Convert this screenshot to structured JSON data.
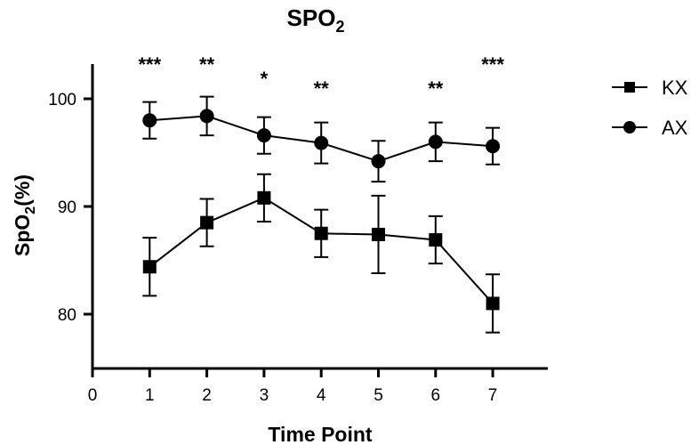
{
  "chart_data": {
    "type": "line",
    "title_main": "SPO",
    "title_sub": "2",
    "xlabel": "Time Point",
    "ylabel_main": "SpO",
    "ylabel_sub": "2",
    "ylabel_tail": "(%)",
    "xlim": [
      0,
      8
    ],
    "ylim": [
      74,
      104
    ],
    "x_ticks": [
      0,
      1,
      2,
      3,
      4,
      5,
      6,
      7
    ],
    "x_tick_labels": [
      "0",
      "1",
      "2",
      "3",
      "4",
      "5",
      "6",
      "7"
    ],
    "y_ticks": [
      80,
      90,
      100
    ],
    "y_tick_labels": [
      "80",
      "90",
      "100"
    ],
    "x": [
      1,
      2,
      3,
      4,
      5,
      6,
      7
    ],
    "series": [
      {
        "name": "KX",
        "marker": "square",
        "values": [
          84.4,
          88.5,
          90.8,
          87.5,
          87.4,
          86.9,
          81.0
        ],
        "errors": [
          2.7,
          2.2,
          2.2,
          2.2,
          3.6,
          2.2,
          2.7
        ]
      },
      {
        "name": "AX",
        "marker": "circle",
        "values": [
          98.0,
          98.4,
          96.6,
          95.9,
          94.2,
          96.0,
          95.6
        ],
        "errors": [
          1.7,
          1.8,
          1.7,
          1.9,
          1.9,
          1.8,
          1.7
        ]
      }
    ],
    "significance": [
      {
        "x": 1,
        "label": "***"
      },
      {
        "x": 2,
        "label": "**"
      },
      {
        "x": 3,
        "label": "*"
      },
      {
        "x": 4,
        "label": "**"
      },
      {
        "x": 6,
        "label": "**"
      },
      {
        "x": 7,
        "label": "***"
      }
    ],
    "legend_position": "top-right"
  }
}
